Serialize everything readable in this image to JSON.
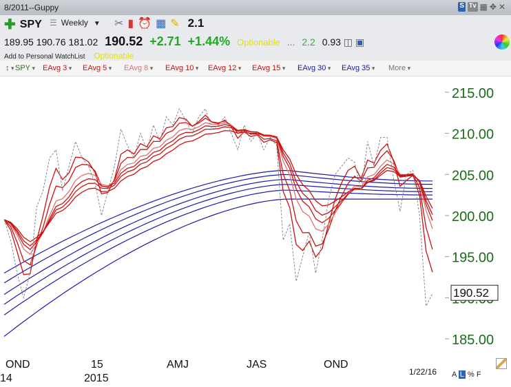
{
  "window": {
    "title": "8/2011--Guppy"
  },
  "quote": {
    "symbol": "SPY",
    "period": "Weekly",
    "indicator_value": "2.1",
    "open": "189.95",
    "high": "190.76",
    "low": "181.02",
    "last": "190.52",
    "change": "+2.71",
    "change_pct": "+1.44%",
    "optionable": "Optionable",
    "ellipsis": "...",
    "val_a": "2.2",
    "val_b": "0.93",
    "watchlist": "Add to Personal WatchList",
    "optionable2": "Optionable"
  },
  "legend": [
    {
      "label": "SPY",
      "color": "#1e7a1e"
    },
    {
      "label": "EAvg 3",
      "color": "#cc1111"
    },
    {
      "label": "EAvg 5",
      "color": "#cc1111"
    },
    {
      "label": "EAvg 8",
      "color": "#e07070"
    },
    {
      "label": "EAvg 10",
      "color": "#cc1111"
    },
    {
      "label": "EAvg 12",
      "color": "#cc1111"
    },
    {
      "label": "EAvg 15",
      "color": "#cc1111"
    },
    {
      "label": "EAvg 30",
      "color": "#1a1aa8"
    },
    {
      "label": "EAvg 35",
      "color": "#1a1aa8"
    },
    {
      "label": "More",
      "color": "#777777"
    }
  ],
  "footer": {
    "date": "1/22/16",
    "scale_a": "A",
    "scale_l": "L",
    "scale_pct": "%",
    "scale_f": "F"
  },
  "chart_data": {
    "type": "line",
    "ylim": [
      183,
      217
    ],
    "y_ticks": [
      "215.00",
      "210.00",
      "205.00",
      "200.00",
      "195.00",
      "190.00",
      "185.00"
    ],
    "tick_color": "#1a6b1a",
    "last_price_label": "190.52",
    "x_month_labels": [
      "OND",
      "15",
      "AMJ",
      "JAS",
      "OND"
    ],
    "x_year_labels": [
      "14",
      "2015"
    ],
    "n_weeks": 67,
    "price": [
      199.5,
      197.0,
      193.0,
      190.0,
      193.0,
      201.0,
      203.0,
      207.0,
      208.0,
      203.0,
      206.0,
      209.0,
      207.0,
      206.0,
      204.0,
      200.0,
      203.0,
      206.0,
      210.5,
      208.5,
      207.0,
      210.0,
      208.0,
      211.0,
      209.0,
      212.0,
      211.0,
      213.0,
      211.5,
      210.0,
      212.0,
      213.0,
      210.5,
      211.0,
      212.0,
      210.0,
      208.0,
      211.0,
      209.0,
      210.0,
      208.0,
      209.5,
      208.5,
      197.0,
      199.0,
      192.0,
      195.0,
      198.0,
      193.0,
      197.0,
      202.0,
      205.0,
      206.0,
      207.0,
      206.5,
      203.0,
      209.0,
      206.0,
      209.5,
      209.5,
      204.5,
      200.5,
      205.0,
      205.5,
      200.0,
      189.0,
      190.5
    ],
    "series": [
      {
        "name": "EAvg 3",
        "period": 3,
        "color": "#cc1111"
      },
      {
        "name": "EAvg 5",
        "period": 5,
        "color": "#cc1111"
      },
      {
        "name": "EAvg 8",
        "period": 8,
        "color": "#e07070"
      },
      {
        "name": "EAvg 10",
        "period": 10,
        "color": "#cc1111"
      },
      {
        "name": "EAvg 12",
        "period": 12,
        "color": "#cc1111"
      },
      {
        "name": "EAvg 15",
        "period": 15,
        "color": "#cc1111"
      },
      {
        "name": "EAvg 30",
        "period": 30,
        "color": "#1a1aa8"
      },
      {
        "name": "EAvg 35",
        "period": 35,
        "color": "#1a1aa8"
      }
    ],
    "blue_ribbon": [
      {
        "period": 30,
        "start": 193.0,
        "mid": 205.5,
        "end": 204.2
      },
      {
        "period": 35,
        "start": 191.8,
        "mid": 205.0,
        "end": 203.8
      },
      {
        "period": 40,
        "start": 190.4,
        "mid": 204.4,
        "end": 203.3
      },
      {
        "period": 45,
        "start": 189.2,
        "mid": 203.8,
        "end": 202.9
      },
      {
        "period": 50,
        "start": 187.9,
        "mid": 203.1,
        "end": 202.5
      },
      {
        "period": 60,
        "start": 185.3,
        "mid": 202.0,
        "end": 202.0
      }
    ]
  }
}
